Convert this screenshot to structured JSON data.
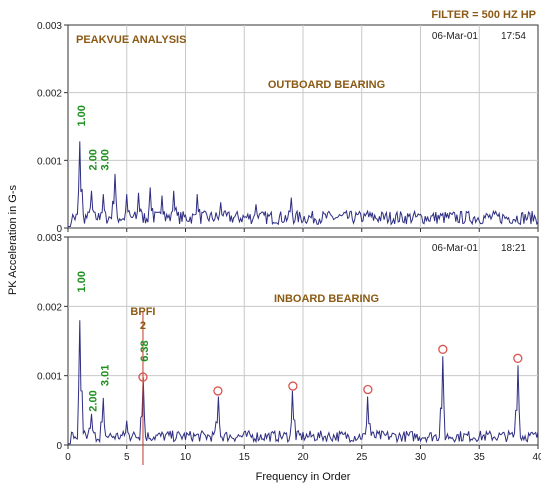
{
  "filter_label": "FILTER = 500 HZ HP",
  "chart_data": [
    {
      "type": "line",
      "panel": "top",
      "title": "PEAKVUE ANALYSIS",
      "subtitle": "OUTBOARD BEARING",
      "date": "06-Mar-01",
      "time": "17:54",
      "ylabel": "PK Acceleration in G-s",
      "xlabel": "Frequency in Order",
      "xlim": [
        0,
        40
      ],
      "ylim": [
        0,
        0.003
      ],
      "xticks": [
        "0",
        "5",
        "10",
        "15",
        "20",
        "25",
        "30",
        "35",
        "40"
      ],
      "yticks": [
        "0",
        "0.001",
        "0.002",
        "0.003"
      ],
      "grid": true,
      "series": [
        {
          "color": "#2e2e82",
          "peaks": [
            {
              "x": 1.0,
              "y": 0.00128
            },
            {
              "x": 2.0,
              "y": 0.00055
            },
            {
              "x": 3.0,
              "y": 0.0005
            },
            {
              "x": 4.0,
              "y": 0.0008
            },
            {
              "x": 5.0,
              "y": 0.0005
            },
            {
              "x": 6.0,
              "y": 0.00052
            },
            {
              "x": 7.0,
              "y": 0.0006
            },
            {
              "x": 8.0,
              "y": 0.00048
            },
            {
              "x": 9.0,
              "y": 0.00055
            },
            {
              "x": 11.0,
              "y": 0.0005
            },
            {
              "x": 13.0,
              "y": 0.00038
            },
            {
              "x": 16.0,
              "y": 0.00035
            },
            {
              "x": 19.0,
              "y": 0.00045
            },
            {
              "x": 25.5,
              "y": 0.00025
            }
          ],
          "noise_floor": 0.00022
        }
      ],
      "annotations": [
        {
          "text": "1.00",
          "x": 1.0,
          "y": 0.0015,
          "color": "#1f8f1f"
        },
        {
          "text": "2.00",
          "x": 2.0,
          "y": 0.00085,
          "color": "#1f8f1f"
        },
        {
          "text": "3.00",
          "x": 3.0,
          "y": 0.00085,
          "color": "#1f8f1f"
        }
      ]
    },
    {
      "type": "line",
      "panel": "bottom",
      "subtitle": "INBOARD BEARING",
      "date": "06-Mar-01",
      "time": "18:21",
      "ylabel": "PK Acceleration in G-s",
      "xlabel": "Frequency in Order",
      "xlim": [
        0,
        40
      ],
      "ylim": [
        0,
        0.003
      ],
      "xticks": [
        "0",
        "5",
        "10",
        "15",
        "20",
        "25",
        "30",
        "35",
        "40"
      ],
      "yticks": [
        "0",
        "0.001",
        "0.002",
        "0.003"
      ],
      "grid": true,
      "series": [
        {
          "color": "#2e2e82",
          "peaks": [
            {
              "x": 1.0,
              "y": 0.0018
            },
            {
              "x": 2.0,
              "y": 0.00045
            },
            {
              "x": 3.0,
              "y": 0.00068
            },
            {
              "x": 5.0,
              "y": 0.00035
            },
            {
              "x": 6.38,
              "y": 0.00098
            },
            {
              "x": 12.76,
              "y": 0.0007
            },
            {
              "x": 19.14,
              "y": 0.00078
            },
            {
              "x": 25.52,
              "y": 0.0007
            },
            {
              "x": 31.9,
              "y": 0.00128
            },
            {
              "x": 38.28,
              "y": 0.00115
            }
          ],
          "noise_floor": 0.00018
        }
      ],
      "markers": [
        {
          "x": 6.38,
          "y": 0.00098
        },
        {
          "x": 12.76,
          "y": 0.00078
        },
        {
          "x": 19.14,
          "y": 0.00085
        },
        {
          "x": 25.52,
          "y": 0.0008
        },
        {
          "x": 31.9,
          "y": 0.00138
        },
        {
          "x": 38.28,
          "y": 0.00125
        }
      ],
      "fault_cursor": {
        "x": 6.38,
        "label": "BPFI",
        "sublabel": "2"
      },
      "annotations": [
        {
          "text": "1.00",
          "x": 1.0,
          "y": 0.0022,
          "color": "#1f8f1f"
        },
        {
          "text": "2.00",
          "x": 2.0,
          "y": 0.00048,
          "color": "#1f8f1f"
        },
        {
          "text": "3.01",
          "x": 3.0,
          "y": 0.00085,
          "color": "#1f8f1f"
        },
        {
          "text": "6.38",
          "x": 6.38,
          "y": 0.0012,
          "color": "#1f8f1f"
        }
      ]
    }
  ]
}
